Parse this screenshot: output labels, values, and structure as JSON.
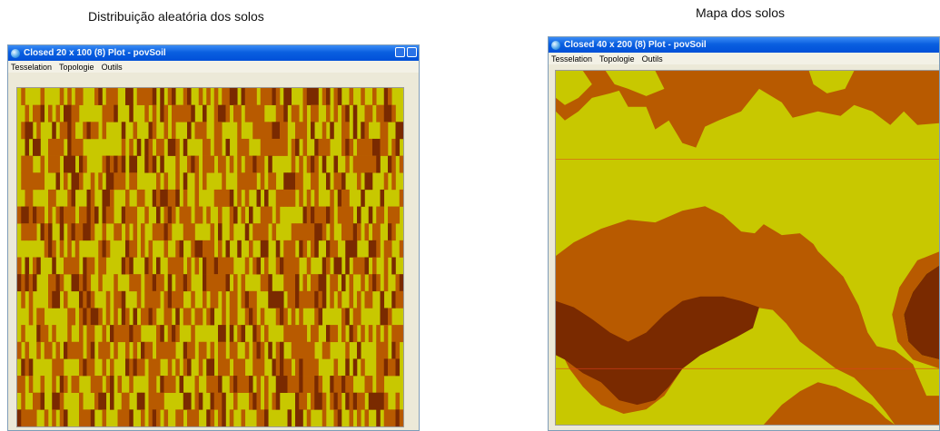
{
  "captions": {
    "left": "Distribuição aleatória dos solos",
    "right": "Mapa dos solos"
  },
  "left_window": {
    "title": "Closed 20 x 100 (8) Plot - povSoil",
    "menu": [
      "Tesselation",
      "Topologie",
      "Outils"
    ]
  },
  "right_window": {
    "title": "Closed 40 x 200 (8) Plot - povSoil",
    "menu": [
      "Tesselation",
      "Topologie",
      "Outils"
    ]
  },
  "colors": {
    "soil_yellow": "#c8c800",
    "soil_orange": "#b85a00",
    "soil_brown": "#7a2a00",
    "window_frame": "#ece9d8",
    "titlebar_blue": "#0a5fe0"
  },
  "icons": {
    "app": "globe-icon",
    "minimize": "minimize-icon",
    "maximize": "maximize-icon"
  }
}
